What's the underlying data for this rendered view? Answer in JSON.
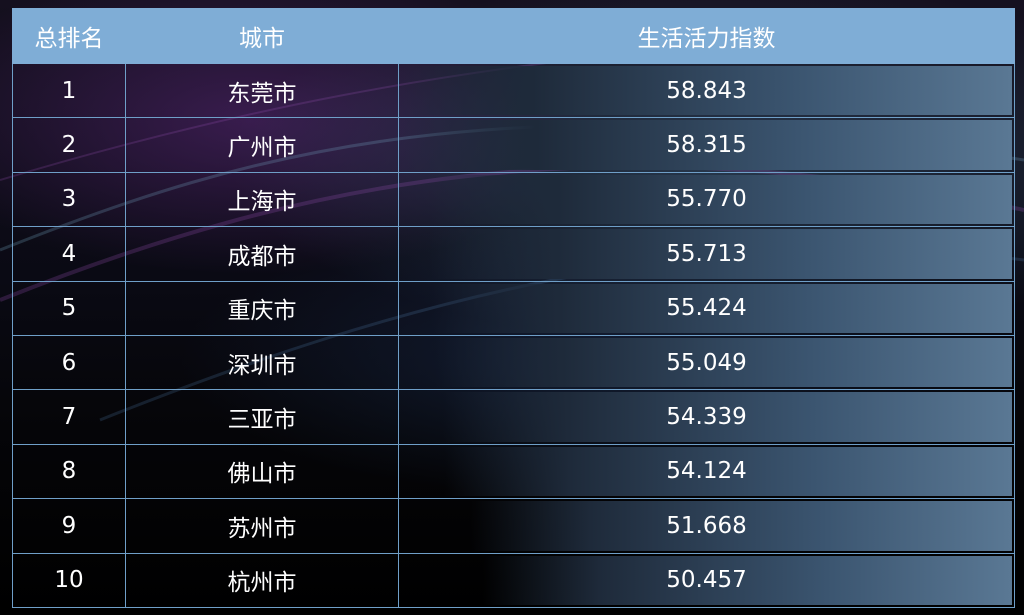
{
  "table": {
    "headers": {
      "rank": "总排名",
      "city": "城市",
      "index": "生活活力指数"
    },
    "rows": [
      {
        "rank": "1",
        "city": "东莞市",
        "value": "58.843"
      },
      {
        "rank": "2",
        "city": "广州市",
        "value": "58.315"
      },
      {
        "rank": "3",
        "city": "上海市",
        "value": "55.770"
      },
      {
        "rank": "4",
        "city": "成都市",
        "value": "55.713"
      },
      {
        "rank": "5",
        "city": "重庆市",
        "value": "55.424"
      },
      {
        "rank": "6",
        "city": "深圳市",
        "value": "55.049"
      },
      {
        "rank": "7",
        "city": "三亚市",
        "value": "54.339"
      },
      {
        "rank": "8",
        "city": "佛山市",
        "value": "54.124"
      },
      {
        "rank": "9",
        "city": "苏州市",
        "value": "51.668"
      },
      {
        "rank": "10",
        "city": "杭州市",
        "value": "50.457"
      }
    ]
  },
  "chart_data": {
    "type": "table",
    "columns": [
      "总排名",
      "城市",
      "生活活力指数"
    ],
    "categories": [
      "东莞市",
      "广州市",
      "上海市",
      "成都市",
      "重庆市",
      "深圳市",
      "三亚市",
      "佛山市",
      "苏州市",
      "杭州市"
    ],
    "values": [
      58.843,
      58.315,
      55.77,
      55.713,
      55.424,
      55.049,
      54.339,
      54.124,
      51.668,
      50.457
    ],
    "colors": {
      "header": "#7fadd6",
      "border": "#6f9fc8",
      "bar": "#5a7894"
    }
  }
}
